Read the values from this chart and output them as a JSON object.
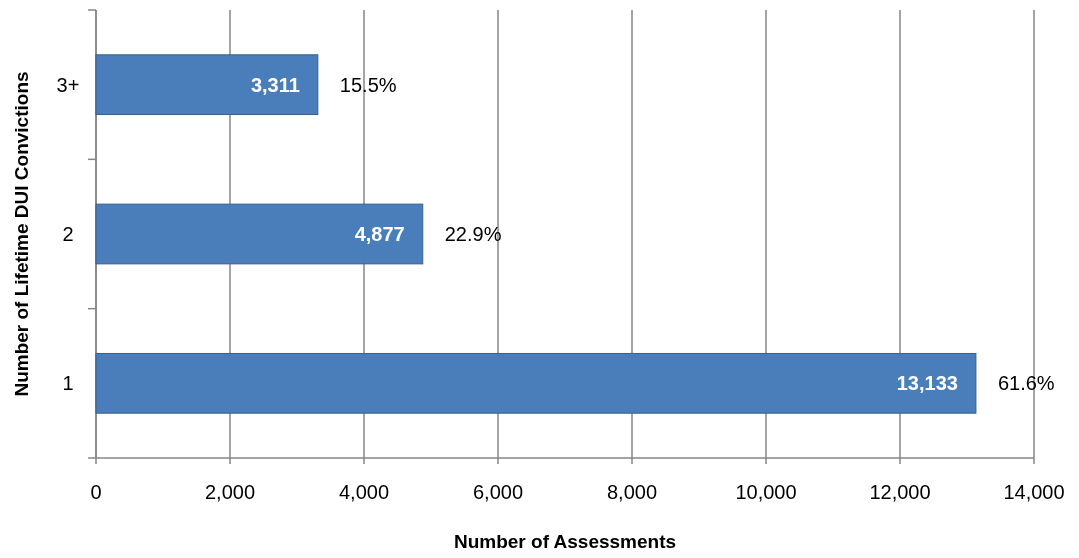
{
  "chart_data": {
    "type": "bar",
    "orientation": "horizontal",
    "xlabel": "Number of Assessments",
    "ylabel": "Number of Lifetime DUI Convictions",
    "categories": [
      "3+",
      "2",
      "1"
    ],
    "values": [
      3311,
      4877,
      13133
    ],
    "value_labels": [
      "3,311",
      "4,877",
      "13,133"
    ],
    "color": "#4a7ebb",
    "xlim": [
      0,
      14000
    ],
    "xticks": [
      {
        "value": 0,
        "label": "0"
      },
      {
        "value": 2000,
        "label": "2,000"
      },
      {
        "value": 4000,
        "label": "4,000"
      },
      {
        "value": 6000,
        "label": "6,000"
      },
      {
        "value": 8000,
        "label": "8,000"
      },
      {
        "value": 10000,
        "label": "10,000"
      },
      {
        "value": 12000,
        "label": "12,000"
      },
      {
        "value": 14000,
        "label": "14,000"
      }
    ],
    "grid": "x",
    "annotations": [
      {
        "text": "15.5%",
        "x": 3311,
        "y": "3+"
      },
      {
        "text": "22.9%",
        "x": 4877,
        "y": "2"
      },
      {
        "text": "61.6%",
        "x": 13133,
        "y": "1"
      }
    ]
  }
}
